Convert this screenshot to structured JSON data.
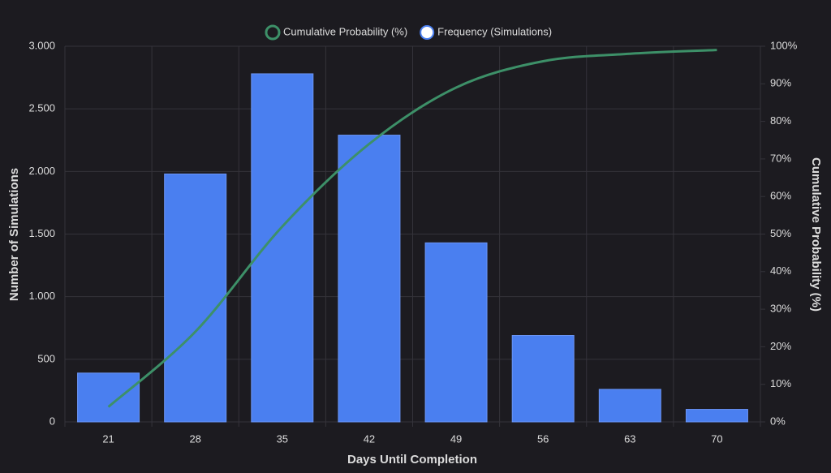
{
  "chart_data": {
    "type": "bar-line",
    "x_label": "Days Until Completion",
    "y_label": "Number of Simulations",
    "y2_label": "Cumulative Probability (%)",
    "categories": [
      "21",
      "28",
      "35",
      "42",
      "49",
      "56",
      "63",
      "70"
    ],
    "series": [
      {
        "name": "Cumulative Probability (%)",
        "type": "line",
        "axis": "y2",
        "color": "#3d9068",
        "values": [
          4,
          24,
          52,
          74,
          89,
          96,
          98,
          99
        ]
      },
      {
        "name": "Frequency (Simulations)",
        "type": "bar",
        "color": "#4a7ff0",
        "values": [
          390,
          1980,
          2780,
          2290,
          1430,
          690,
          260,
          100
        ]
      }
    ],
    "ylim": [
      0,
      3000
    ],
    "yticks": [
      0,
      500,
      {
        "value": 1000,
        "label": "1.000"
      },
      {
        "value": 1500,
        "label": "1.500"
      },
      {
        "value": 2000,
        "label": "2.000"
      },
      {
        "value": 2500,
        "label": "2.500"
      },
      {
        "value": 3000,
        "label": "3.000"
      }
    ],
    "y2lim": [
      0,
      100
    ],
    "y2ticks": [
      {
        "value": 0,
        "label": "0%"
      },
      {
        "value": 10,
        "label": "10%"
      },
      {
        "value": 20,
        "label": "20%"
      },
      {
        "value": 30,
        "label": "30%"
      },
      {
        "value": 40,
        "label": "40%"
      },
      {
        "value": 50,
        "label": "50%"
      },
      {
        "value": 60,
        "label": "60%"
      },
      {
        "value": 70,
        "label": "70%"
      },
      {
        "value": 80,
        "label": "80%"
      },
      {
        "value": 90,
        "label": "90%"
      },
      {
        "value": 100,
        "label": "100%"
      }
    ],
    "grid": true,
    "legend": "top"
  }
}
